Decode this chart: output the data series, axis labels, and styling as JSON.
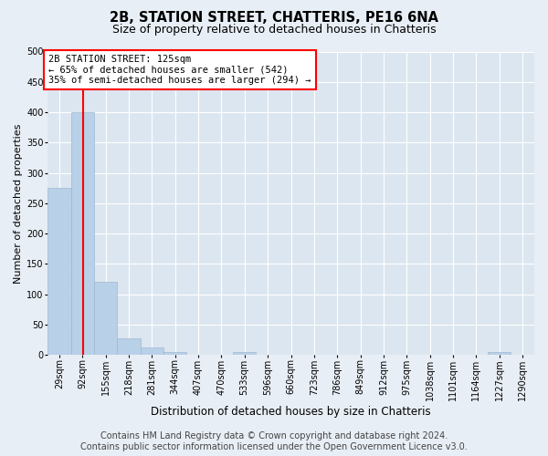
{
  "title": "2B, STATION STREET, CHATTERIS, PE16 6NA",
  "subtitle": "Size of property relative to detached houses in Chatteris",
  "xlabel": "Distribution of detached houses by size in Chatteris",
  "ylabel": "Number of detached properties",
  "footer_line1": "Contains HM Land Registry data © Crown copyright and database right 2024.",
  "footer_line2": "Contains public sector information licensed under the Open Government Licence v3.0.",
  "bar_edges": [
    29,
    92,
    155,
    218,
    281,
    344,
    407,
    470,
    533,
    596,
    660,
    723,
    786,
    849,
    912,
    975,
    1038,
    1101,
    1164,
    1227,
    1290
  ],
  "bar_heights": [
    275,
    400,
    120,
    27,
    13,
    5,
    0,
    0,
    4,
    0,
    0,
    0,
    0,
    0,
    0,
    0,
    0,
    0,
    0,
    4,
    0
  ],
  "bar_color": "#b8d0e8",
  "bar_edge_color": "#a0b8d0",
  "property_size": 125,
  "red_line_color": "red",
  "annotation_text": "2B STATION STREET: 125sqm\n← 65% of detached houses are smaller (542)\n35% of semi-detached houses are larger (294) →",
  "annotation_box_color": "white",
  "annotation_box_edge_color": "red",
  "ylim": [
    0,
    500
  ],
  "yticks": [
    0,
    50,
    100,
    150,
    200,
    250,
    300,
    350,
    400,
    450,
    500
  ],
  "bg_color": "#e8eef5",
  "plot_bg_color": "#dce6f0",
  "grid_color": "white",
  "title_fontsize": 10.5,
  "subtitle_fontsize": 9,
  "ylabel_fontsize": 8,
  "xlabel_fontsize": 8.5,
  "tick_label_fontsize": 7,
  "footer_fontsize": 7,
  "annot_fontsize": 7.5
}
